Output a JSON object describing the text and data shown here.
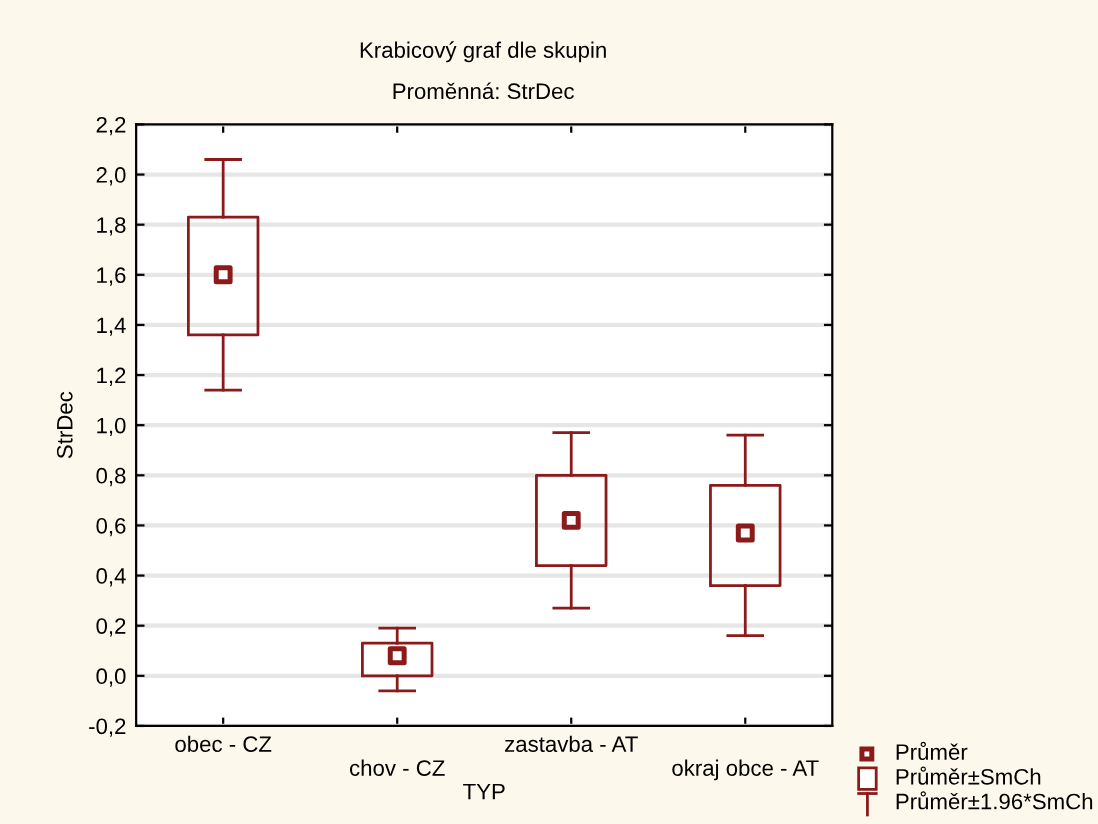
{
  "chart_data": {
    "type": "box",
    "title": "Krabicový graf dle skupin",
    "subtitle": "Proměnná: StrDec",
    "xlabel": "TYP",
    "ylabel": "StrDec",
    "categories": [
      "obec - CZ",
      "chov - CZ",
      "zastavba - AT",
      "okraj obce - AT"
    ],
    "boxes": [
      {
        "low": 1.14,
        "q1": 1.36,
        "q3": 1.83,
        "high": 2.06,
        "mean": 1.6
      },
      {
        "low": -0.06,
        "q1": 0.0,
        "q3": 0.13,
        "high": 0.19,
        "mean": 0.08
      },
      {
        "low": 0.27,
        "q1": 0.44,
        "q3": 0.8,
        "high": 0.97,
        "mean": 0.62
      },
      {
        "low": 0.16,
        "q1": 0.36,
        "q3": 0.76,
        "high": 0.96,
        "mean": 0.57
      }
    ],
    "color": "#8b1a1a",
    "ylim": [
      -0.2,
      2.2
    ],
    "yticks": [
      {
        "value": -0.2,
        "label": "-0,2"
      },
      {
        "value": 0.0,
        "label": "0,0"
      },
      {
        "value": 0.2,
        "label": "0,2"
      },
      {
        "value": 0.4,
        "label": "0,4"
      },
      {
        "value": 0.6,
        "label": "0,6"
      },
      {
        "value": 0.8,
        "label": "0,8"
      },
      {
        "value": 1.0,
        "label": "1,0"
      },
      {
        "value": 1.2,
        "label": "1,2"
      },
      {
        "value": 1.4,
        "label": "1,4"
      },
      {
        "value": 1.6,
        "label": "1,6"
      },
      {
        "value": 1.8,
        "label": "1,8"
      },
      {
        "value": 2.0,
        "label": "2,0"
      },
      {
        "value": 2.2,
        "label": "2,2"
      }
    ],
    "grid": "y",
    "annotations": [
      "Průměr",
      "Průměr±SmCh",
      "Průměr±1.96*SmCh"
    ]
  }
}
